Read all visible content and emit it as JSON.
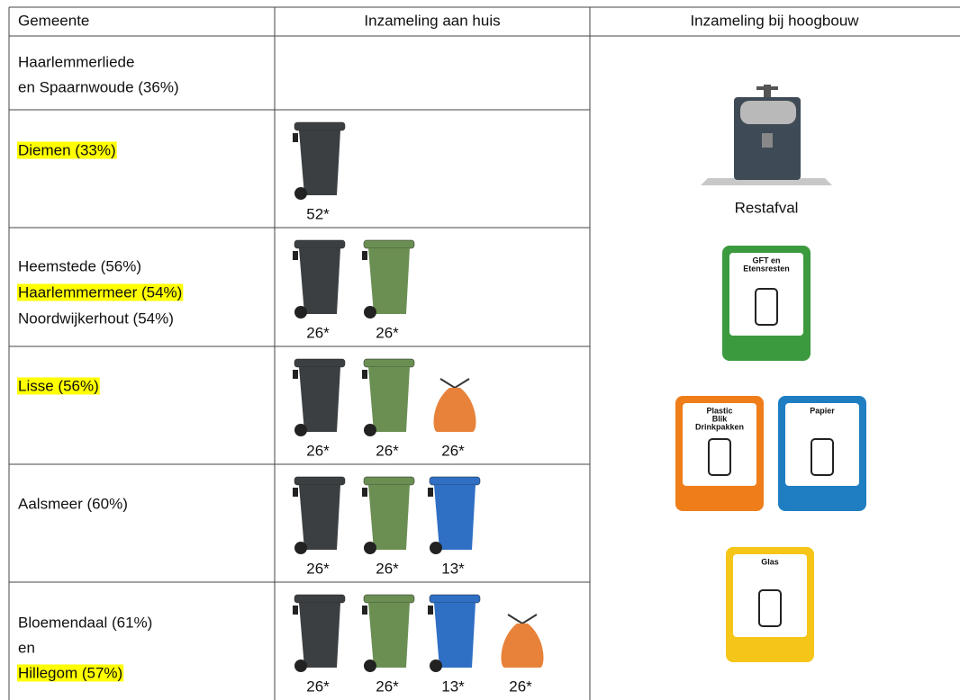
{
  "header": {
    "columns": [
      "Gemeente",
      "Inzameling aan huis",
      "Inzameling bij hoogbouw"
    ]
  },
  "rows": [
    {
      "gemeente": [
        {
          "text": "Haarlemmerliede",
          "highlight": false
        },
        {
          "text": "en Spaarnwoude (36%)",
          "highlight": false
        }
      ],
      "containers": []
    },
    {
      "gemeente": [
        {
          "text": "Diemen (33%)",
          "highlight": true
        }
      ],
      "containers": [
        {
          "type": "bin",
          "color": "#3b3f41",
          "label": "52*"
        }
      ]
    },
    {
      "gemeente": [
        {
          "text": "Heemstede (56%)",
          "highlight": false
        },
        {
          "text": "Haarlemmermeer (54%)",
          "highlight": true
        },
        {
          "text": "Noordwijkerhout (54%)",
          "highlight": false
        }
      ],
      "containers": [
        {
          "type": "bin",
          "color": "#3b3f41",
          "label": "26*"
        },
        {
          "type": "bin",
          "color": "#6b8f53",
          "label": "26*"
        }
      ]
    },
    {
      "gemeente": [
        {
          "text": "Lisse (56%)",
          "highlight": true
        }
      ],
      "containers": [
        {
          "type": "bin",
          "color": "#3b3f41",
          "label": "26*"
        },
        {
          "type": "bin",
          "color": "#6b8f53",
          "label": "26*"
        },
        {
          "type": "bag",
          "color": "#e8823a",
          "label": "26*"
        }
      ]
    },
    {
      "gemeente": [
        {
          "text": "Aalsmeer (60%)",
          "highlight": false
        }
      ],
      "containers": [
        {
          "type": "bin",
          "color": "#3b3f41",
          "label": "26*"
        },
        {
          "type": "bin",
          "color": "#6b8f53",
          "label": "26*"
        },
        {
          "type": "bin",
          "color": "#2f6fc4",
          "label": "13*"
        }
      ]
    },
    {
      "gemeente": [
        {
          "text": "Bloemendaal (61%)",
          "highlight": false
        },
        {
          "text": "en",
          "highlight": false
        },
        {
          "text": "Hillegom (57%)",
          "highlight": true
        }
      ],
      "containers": [
        {
          "type": "bin",
          "color": "#3b3f41",
          "label": "26*"
        },
        {
          "type": "bin",
          "color": "#6b8f53",
          "label": "26*"
        },
        {
          "type": "bin",
          "color": "#2f6fc4",
          "label": "13*"
        },
        {
          "type": "bag",
          "color": "#e8823a",
          "label": "26*"
        }
      ]
    }
  ],
  "hoogbouw": {
    "restafval": "Restafval",
    "signs": [
      {
        "lines": [
          "GFT en",
          "Etensresten"
        ],
        "color": "#3b9a3e"
      },
      {
        "lines": [
          "Plastic",
          "Blik",
          "Drinkpakken"
        ],
        "color": "#ef7d1a"
      },
      {
        "lines": [
          "Papier"
        ],
        "color": "#1f7ec2"
      },
      {
        "lines": [
          "Glas"
        ],
        "color": "#f5c518"
      }
    ]
  }
}
